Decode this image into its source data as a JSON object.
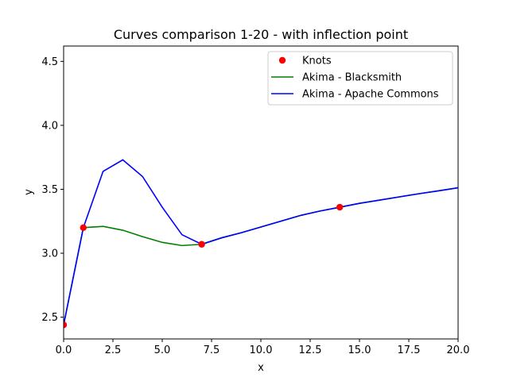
{
  "chart_data": {
    "type": "line",
    "title": "Curves comparison 1-20 - with inflection point",
    "xlabel": "x",
    "ylabel": "y",
    "xlim": [
      0,
      20
    ],
    "ylim": [
      2.33,
      4.62
    ],
    "xticks": [
      {
        "value": 0,
        "label": "0.0"
      },
      {
        "value": 2.5,
        "label": "2.5"
      },
      {
        "value": 5,
        "label": "5.0"
      },
      {
        "value": 7.5,
        "label": "7.5"
      },
      {
        "value": 10,
        "label": "10.0"
      },
      {
        "value": 12.5,
        "label": "12.5"
      },
      {
        "value": 15,
        "label": "15.0"
      },
      {
        "value": 17.5,
        "label": "17.5"
      },
      {
        "value": 20,
        "label": "20.0"
      }
    ],
    "yticks": [
      {
        "value": 2.5,
        "label": "2.5"
      },
      {
        "value": 3.0,
        "label": "3.0"
      },
      {
        "value": 3.5,
        "label": "3.5"
      },
      {
        "value": 4.0,
        "label": "4.0"
      },
      {
        "value": 4.5,
        "label": "4.5"
      }
    ],
    "grid": false,
    "legend_position": "top-right",
    "series": [
      {
        "name": "Knots",
        "kind": "scatter",
        "color": "#ff0000",
        "x": [
          0,
          1,
          7,
          14
        ],
        "y": [
          2.44,
          3.2,
          3.07,
          3.36
        ]
      },
      {
        "name": "Akima - Blacksmith",
        "kind": "line",
        "color": "#008000",
        "x": [
          0,
          1,
          2,
          3,
          4,
          5,
          6,
          7,
          8,
          9,
          10,
          11,
          12,
          13,
          14,
          15,
          16,
          17,
          18,
          19,
          20
        ],
        "y": [
          2.44,
          3.2,
          3.21,
          3.18,
          3.13,
          3.085,
          3.06,
          3.07,
          3.12,
          3.16,
          3.205,
          3.25,
          3.295,
          3.33,
          3.36,
          3.39,
          3.415,
          3.44,
          3.465,
          3.488,
          3.512
        ]
      },
      {
        "name": "Akima - Apache Commons",
        "kind": "line",
        "color": "#0000ff",
        "x": [
          0,
          1,
          2,
          3,
          4,
          5,
          6,
          7,
          8,
          9,
          10,
          11,
          12,
          13,
          14,
          15,
          16,
          17,
          18,
          19,
          20
        ],
        "y": [
          2.44,
          3.2,
          3.64,
          3.73,
          3.6,
          3.36,
          3.145,
          3.07,
          3.12,
          3.16,
          3.205,
          3.25,
          3.295,
          3.33,
          3.36,
          3.39,
          3.415,
          3.44,
          3.465,
          3.488,
          3.512
        ]
      }
    ]
  }
}
